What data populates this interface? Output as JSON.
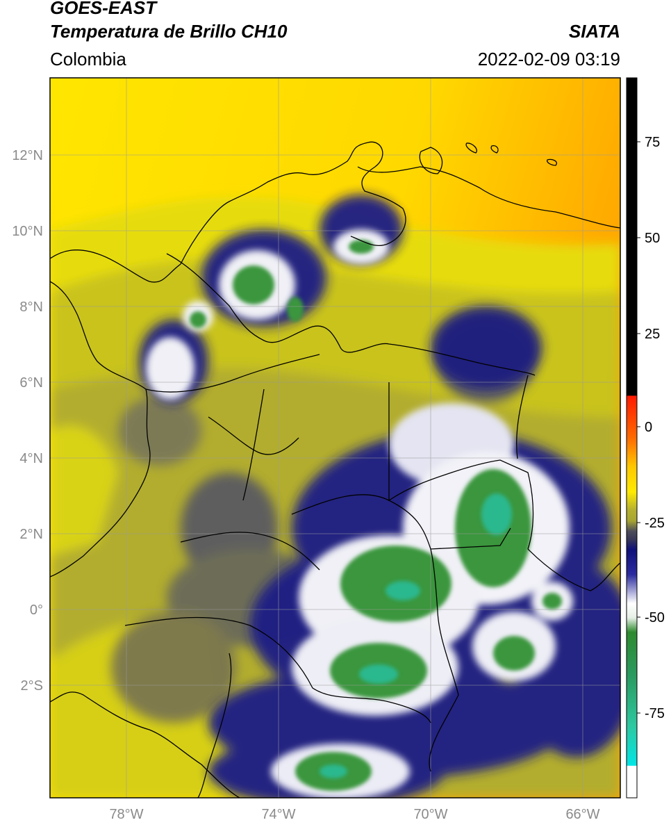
{
  "header": {
    "title_line1": "GOES-EAST",
    "title_line2": "Temperatura de Brillo CH10",
    "region": "Colombia",
    "source": "SIATA",
    "timestamp": "2022-02-09 03:19"
  },
  "map": {
    "lat_ticks": [
      "12°N",
      "10°N",
      "8°N",
      "6°N",
      "4°N",
      "2°N",
      "0°",
      "2°S"
    ],
    "lon_ticks": [
      "78°W",
      "74°W",
      "70°W",
      "66°W"
    ],
    "extent": {
      "lon_min": -80,
      "lon_max": -65,
      "lat_min": -5,
      "lat_max": 14
    }
  },
  "colorbar": {
    "ticks": [
      "75",
      "50",
      "25",
      "0",
      "-25",
      "-50",
      "-75"
    ],
    "range": [
      -95,
      90
    ],
    "colors": {
      "hot": "#000000",
      "red": "#ff1a00",
      "orange": "#ff9a00",
      "yellow": "#ffea00",
      "olive": "#a8a632",
      "grey": "#505060",
      "navy": "#10107a",
      "white": "#ffffff",
      "green": "#2e8a2e",
      "teal": "#2ec8a0",
      "cyan": "#00e5e5"
    }
  }
}
